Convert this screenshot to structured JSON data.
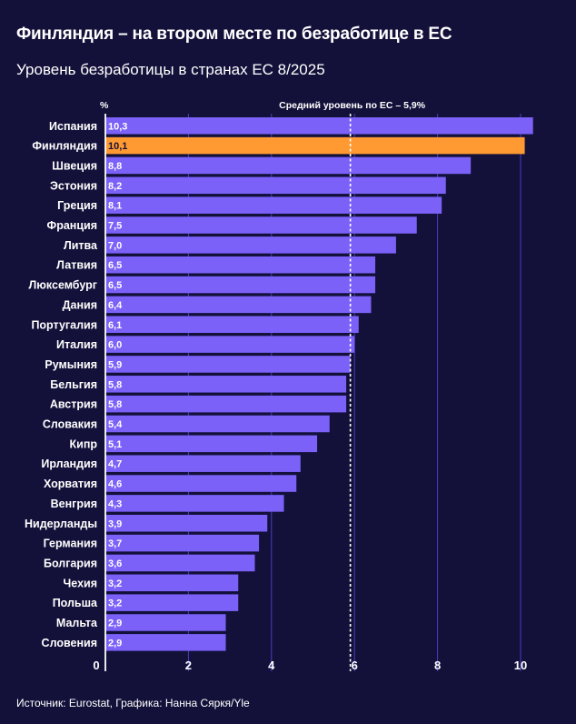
{
  "title": "Финляндия – на втором месте по безработице в ЕС",
  "subtitle": "Уровень безработицы в странах ЕС 8/2025",
  "source": "Источник: Eurostat, Графика: Нанна Сяркя/Yle",
  "colors": {
    "background": "#13113a",
    "bar": "#7b61f8",
    "highlight": "#ff9a33",
    "gridline": "#4a3fbf",
    "text": "#ffffff"
  },
  "chart_data": {
    "type": "bar",
    "orientation": "horizontal",
    "unit_label": "%",
    "categories": [
      "Испания",
      "Финляндия",
      "Швеция",
      "Эстония",
      "Греция",
      "Франция",
      "Литва",
      "Латвия",
      "Люксембург",
      "Дания",
      "Португалия",
      "Италия",
      "Румыния",
      "Бельгия",
      "Австрия",
      "Словакия",
      "Кипр",
      "Ирландия",
      "Хорватия",
      "Венгрия",
      "Нидерланды",
      "Германия",
      "Болгария",
      "Чехия",
      "Польша",
      "Мальта",
      "Словения"
    ],
    "values": [
      10.3,
      10.1,
      8.8,
      8.2,
      8.1,
      7.5,
      7.0,
      6.5,
      6.5,
      6.4,
      6.1,
      6.0,
      5.9,
      5.8,
      5.8,
      5.4,
      5.1,
      4.7,
      4.6,
      4.3,
      3.9,
      3.7,
      3.6,
      3.2,
      3.2,
      2.9,
      2.9
    ],
    "value_labels": [
      "10,3",
      "10,1",
      "8,8",
      "8,2",
      "8,1",
      "7,5",
      "7,0",
      "6,5",
      "6,5",
      "6,4",
      "6,1",
      "6,0",
      "5,9",
      "5,8",
      "5,8",
      "5,4",
      "5,1",
      "4,7",
      "4,6",
      "4,3",
      "3,9",
      "3,7",
      "3,6",
      "3,2",
      "3,2",
      "2,9",
      "2,9"
    ],
    "highlight": "Финляндия",
    "xlim": [
      0,
      10.5
    ],
    "xticks": [
      0,
      2,
      4,
      6,
      8,
      10
    ],
    "xtick_labels": [
      "0",
      "2",
      "4",
      "6",
      "8",
      "10"
    ],
    "reference_line": {
      "value": 5.9,
      "label": "Средний уровень по ЕС – 5,9%"
    }
  }
}
